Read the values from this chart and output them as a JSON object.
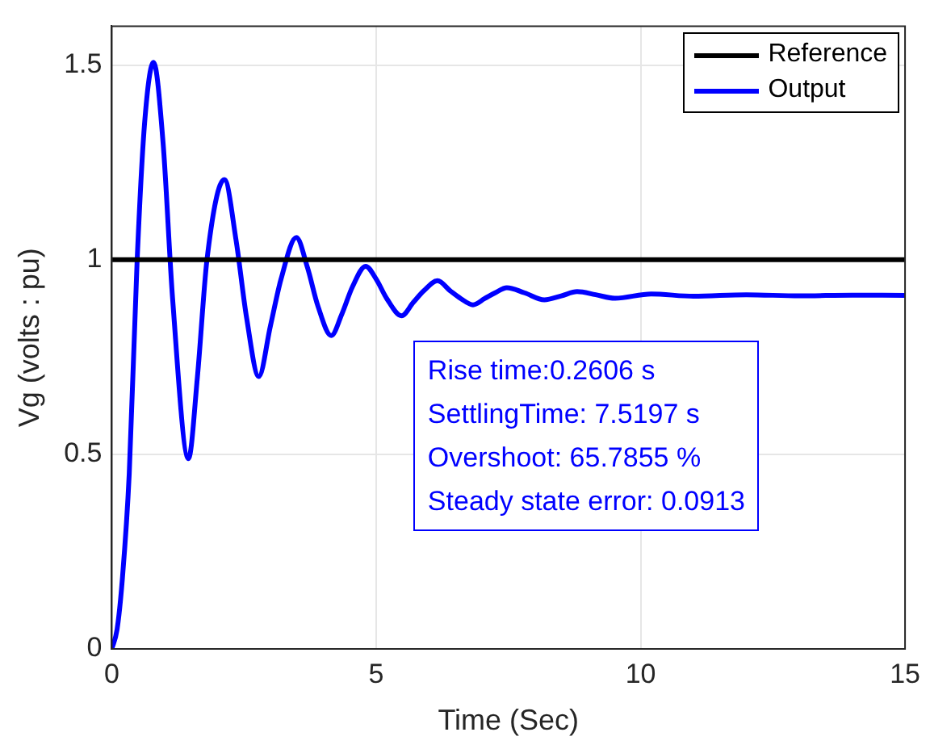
{
  "chart_data": {
    "type": "line",
    "xlabel": "Time (Sec)",
    "ylabel": "Vg (volts : pu)",
    "xlim": [
      0,
      15
    ],
    "xticks": [
      0,
      5,
      10,
      15
    ],
    "ylim": [
      0,
      1.6
    ],
    "yticks": [
      0,
      0.5,
      1,
      1.5
    ],
    "grid": true,
    "legend": "top right",
    "marker": "none",
    "line_style": "solid",
    "series": [
      {
        "name": "Reference",
        "color": "#000000",
        "x": [
          0,
          15
        ],
        "values": [
          1,
          1
        ]
      },
      {
        "name": "Output",
        "color": "#0000ff",
        "x": [
          0,
          0.1,
          0.2,
          0.33,
          0.48,
          0.62,
          0.79,
          0.97,
          1.15,
          1.45,
          1.62,
          1.8,
          2.13,
          2.35,
          2.55,
          2.78,
          3.0,
          3.2,
          3.49,
          3.7,
          3.9,
          4.15,
          4.35,
          4.55,
          4.8,
          5.0,
          5.2,
          5.48,
          5.7,
          5.9,
          6.16,
          6.4,
          6.6,
          6.83,
          7.05,
          7.25,
          7.47,
          7.8,
          8.18,
          8.5,
          8.8,
          9.15,
          9.51,
          10.2,
          11,
          12,
          13,
          14,
          15
        ],
        "values": [
          0,
          0.05,
          0.18,
          0.45,
          1.0,
          1.35,
          1.507,
          1.3,
          0.9,
          0.489,
          0.7,
          1.0,
          1.206,
          1.05,
          0.85,
          0.7,
          0.83,
          0.95,
          1.057,
          0.98,
          0.88,
          0.805,
          0.86,
          0.93,
          0.983,
          0.95,
          0.9,
          0.856,
          0.89,
          0.92,
          0.946,
          0.92,
          0.9,
          0.884,
          0.9,
          0.915,
          0.928,
          0.915,
          0.897,
          0.907,
          0.918,
          0.91,
          0.901,
          0.912,
          0.906,
          0.91,
          0.907,
          0.909,
          0.908
        ]
      }
    ],
    "annotations": [
      "Rise time:0.2606 s",
      "SettlingTime: 7.5197 s",
      "Overshoot: 65.7855 %",
      "Steady state error: 0.0913"
    ]
  }
}
